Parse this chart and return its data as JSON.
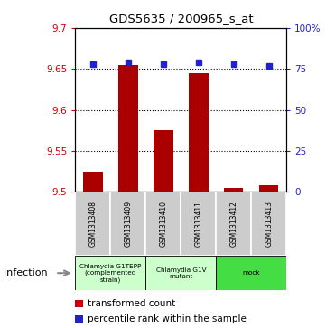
{
  "title": "GDS5635 / 200965_s_at",
  "samples": [
    "GSM1313408",
    "GSM1313409",
    "GSM1313410",
    "GSM1313411",
    "GSM1313412",
    "GSM1313413"
  ],
  "bar_values": [
    9.525,
    9.655,
    9.575,
    9.645,
    9.505,
    9.508
  ],
  "bar_bottom": 9.5,
  "percentile_values": [
    78,
    79,
    78,
    79,
    78,
    77
  ],
  "ylim_left": [
    9.5,
    9.7
  ],
  "ylim_right": [
    0,
    100
  ],
  "yticks_left": [
    9.5,
    9.55,
    9.6,
    9.65,
    9.7
  ],
  "yticks_right": [
    0,
    25,
    50,
    75,
    100
  ],
  "ytick_labels_left": [
    "9.5",
    "9.55",
    "9.6",
    "9.65",
    "9.7"
  ],
  "ytick_labels_right": [
    "0",
    "25",
    "50",
    "75",
    "100%"
  ],
  "bar_color": "#aa0000",
  "percentile_color": "#2222cc",
  "groups": [
    {
      "label": "Chlamydia G1TEPP\n(complemented\nstrain)",
      "start": 0,
      "end": 2,
      "color": "#ccffcc"
    },
    {
      "label": "Chlamydia G1V\nmutant",
      "start": 2,
      "end": 4,
      "color": "#ccffcc"
    },
    {
      "label": "mock",
      "start": 4,
      "end": 6,
      "color": "#44dd44"
    }
  ],
  "infection_label": "infection",
  "legend_items": [
    {
      "color": "#cc0000",
      "marker": "s",
      "label": "transformed count"
    },
    {
      "color": "#2222cc",
      "marker": "s",
      "label": "percentile rank within the sample"
    }
  ]
}
